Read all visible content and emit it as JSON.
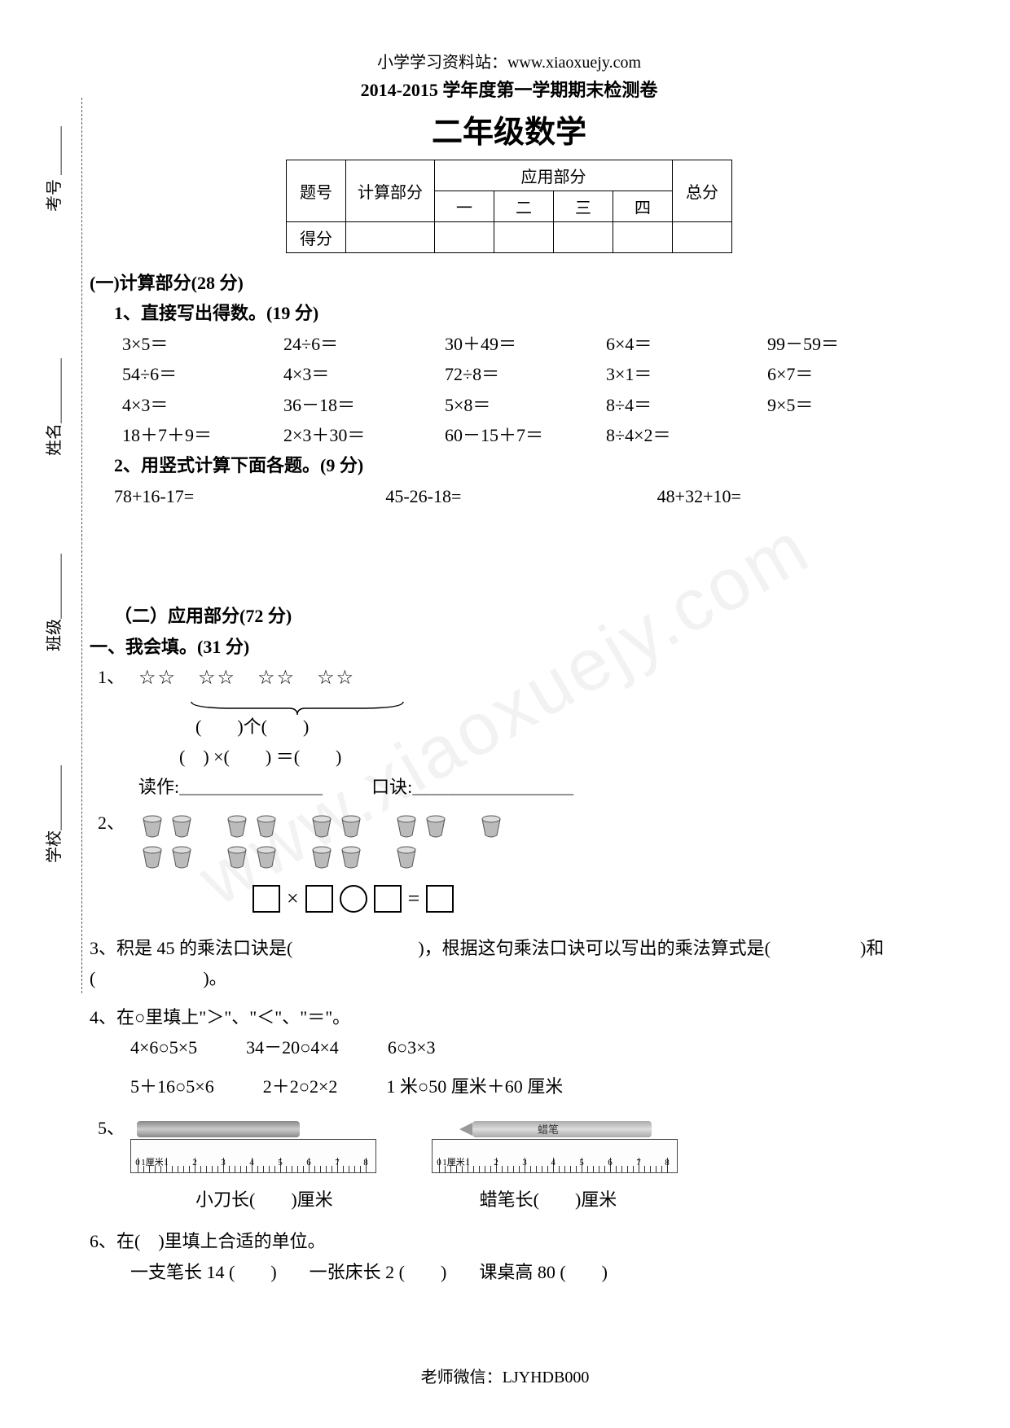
{
  "header": {
    "url": "小学学习资料站：www.xiaoxuejy.com",
    "exam_title": "2014-2015 学年度第一学期期末检测卷",
    "grade_title": "二年级数学"
  },
  "score_table": {
    "col1": "题号",
    "col2": "计算部分",
    "col3": "应用部分",
    "col4": "总分",
    "sub": [
      "一",
      "二",
      "三",
      "四"
    ],
    "row2": "得分"
  },
  "binding": {
    "exam_no": "考号 ＿＿＿",
    "name": "姓名＿＿＿＿",
    "class": "班级＿＿＿＿",
    "school": "学校＿＿＿＿"
  },
  "section1": {
    "title": "(一)计算部分(28 分)",
    "q1_title": "1、直接写出得数。(19 分)",
    "row1": [
      "3×5＝",
      "24÷6＝",
      "30＋49＝",
      "6×4＝",
      "99－59＝"
    ],
    "row2": [
      "54÷6＝",
      "4×3＝",
      "72÷8＝",
      "3×1＝",
      "6×7＝"
    ],
    "row3": [
      "4×3＝",
      "36－18＝",
      "5×8＝",
      "8÷4＝",
      "9×5＝"
    ],
    "row4": [
      "18＋7＋9＝",
      "2×3＋30＝",
      "60－15＋7＝",
      "8÷4×2＝"
    ],
    "q2_title": "2、用竖式计算下面各题。(9 分)",
    "q2_items": [
      "78+16-17=",
      "45-26-18=",
      "48+32+10="
    ]
  },
  "section2": {
    "title": "（二）应用部分(72 分)",
    "sub_title": "一、我会填。(31 分)",
    "q1_label": "1、",
    "stars": "☆☆　☆☆　☆☆　☆☆",
    "q1_line1": "(　　)个(　　)",
    "q1_line2": "(　) ×(　　) ＝(　　)",
    "q1_line3a": "读作:＿＿＿＿＿＿＿＿",
    "q1_line3b": "口诀:＿＿＿＿＿＿＿＿＿",
    "q2_label": "2、",
    "q3": "3、积是 45 的乘法口诀是(　　　　　　　)，根据这句乘法口诀可以写出的乘法算式是(　　　　　)和(　　　　　　)。",
    "q4_title": "4、在○里填上\"＞\"、\"＜\"、\"＝\"。",
    "q4_row1": [
      "4×6○5×5",
      "34－20○4×4",
      "6○3×3"
    ],
    "q4_row2": [
      "5＋16○5×6",
      "2＋2○2×2",
      "1 米○50 厘米＋60 厘米"
    ],
    "q5_label": "5、",
    "q5_left": "小刀长(　　)厘米",
    "q5_right": "蜡笔长(　　)厘米",
    "q6_title": "6、在(　)里填上合适的单位。",
    "q6_items": [
      "一支笔长 14 (　　)",
      "一张床长 2 (　　)",
      "课桌高 80 (　　)"
    ],
    "crayon_label": "蜡笔",
    "ruler_unit": "1厘米"
  },
  "footer": "老师微信：LJYHDB000",
  "watermark": "www.xiaoxuejy.com",
  "style": {
    "page_bg": "#ffffff",
    "text_color": "#000000",
    "border_color": "#000000",
    "font_body": 22,
    "font_grade_title": 38
  }
}
